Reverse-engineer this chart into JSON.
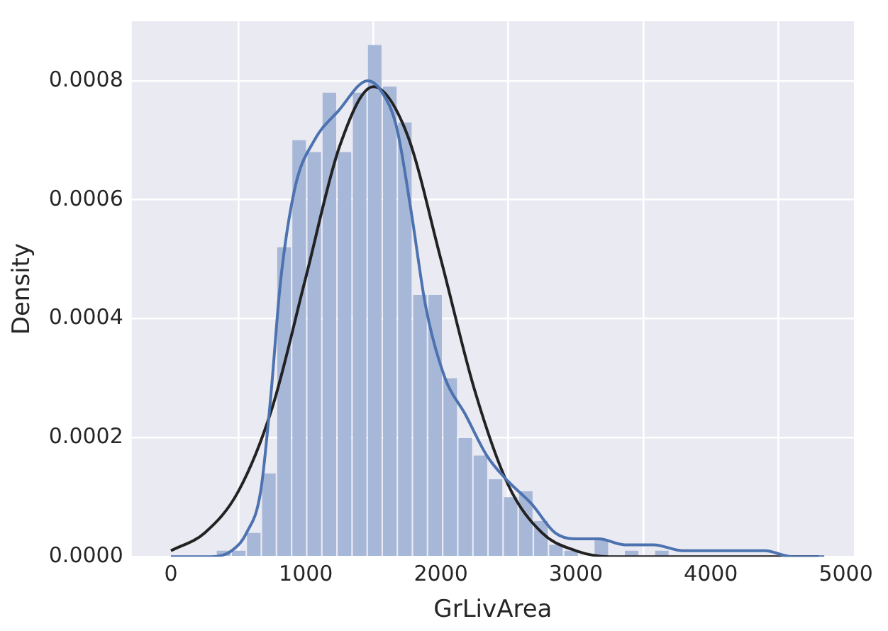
{
  "chart_data": {
    "type": "histogram",
    "xlabel": "GrLivArea",
    "ylabel": "Density",
    "xlim": [
      -290,
      5060
    ],
    "ylim": [
      0,
      0.0009
    ],
    "xticks": [
      0,
      1000,
      2000,
      3000,
      4000,
      5000
    ],
    "yticks": [
      {
        "value": 0,
        "label": "0.0000"
      },
      {
        "value": 0.0002,
        "label": "0.0002"
      },
      {
        "value": 0.0004,
        "label": "0.0004"
      },
      {
        "value": 0.0006,
        "label": "0.0006"
      },
      {
        "value": 0.0008,
        "label": "0.0008"
      }
    ],
    "grid": true,
    "series": [
      {
        "type": "histogram",
        "color": "#a7b7d8",
        "bins": [
          334,
          446,
          558,
          670,
          782,
          894,
          1006,
          1118,
          1230,
          1342,
          1454,
          1566,
          1677,
          1789,
          1901,
          2013,
          2125,
          2237,
          2349,
          2461,
          2573,
          2685,
          2797,
          2909,
          3021,
          3133,
          3245,
          3357,
          3469,
          3581,
          3693,
          3805,
          3917,
          4029,
          4141,
          4252,
          4364,
          4476
        ],
        "values": [
          1e-05,
          1e-05,
          4e-05,
          0.00014,
          0.00052,
          0.0007,
          0.00068,
          0.00078,
          0.00068,
          0.00078,
          0.00086,
          0.00079,
          0.00073,
          0.00044,
          0.00044,
          0.0003,
          0.0002,
          0.00017,
          0.00013,
          0.0001,
          0.00011,
          6e-05,
          2e-05,
          1e-05,
          null,
          3e-05,
          0,
          1e-05,
          0,
          1e-05,
          0,
          0,
          0,
          0,
          0,
          0,
          0
        ]
      },
      {
        "type": "line",
        "color": "#4c72b0",
        "x": [
          0,
          125,
          300,
          450,
          560,
          665,
          740,
          811,
          919,
          1063,
          1243,
          1458,
          1566,
          1674,
          1780,
          1888,
          2031,
          2179,
          2340,
          2484,
          2667,
          2847,
          2990,
          3170,
          3360,
          3576,
          3794,
          4007,
          4200,
          4400,
          4600,
          4840
        ],
        "values": [
          0,
          0,
          0,
          1e-05,
          4e-05,
          0.00011,
          0.00027,
          0.00046,
          0.00062,
          0.0007,
          0.00075,
          0.0008,
          0.00078,
          0.00072,
          0.00058,
          0.00042,
          0.0003,
          0.00024,
          0.00017,
          0.00013,
          9e-05,
          4e-05,
          3e-05,
          3e-05,
          2e-05,
          2e-05,
          1e-05,
          1e-05,
          1e-05,
          1e-05,
          0,
          0
        ]
      },
      {
        "type": "line",
        "color": "#222222",
        "x": [
          0,
          250,
          500,
          750,
          1000,
          1250,
          1500,
          1750,
          2000,
          2250,
          2500,
          2750,
          3000,
          3250,
          3500,
          4000,
          4500,
          4800
        ],
        "values": [
          1e-05,
          4e-05,
          0.00011,
          0.00025,
          0.00047,
          0.00069,
          0.00079,
          0.00071,
          0.0005,
          0.00028,
          0.00012,
          4e-05,
          1e-05,
          0,
          0,
          0,
          0,
          0
        ]
      }
    ]
  }
}
